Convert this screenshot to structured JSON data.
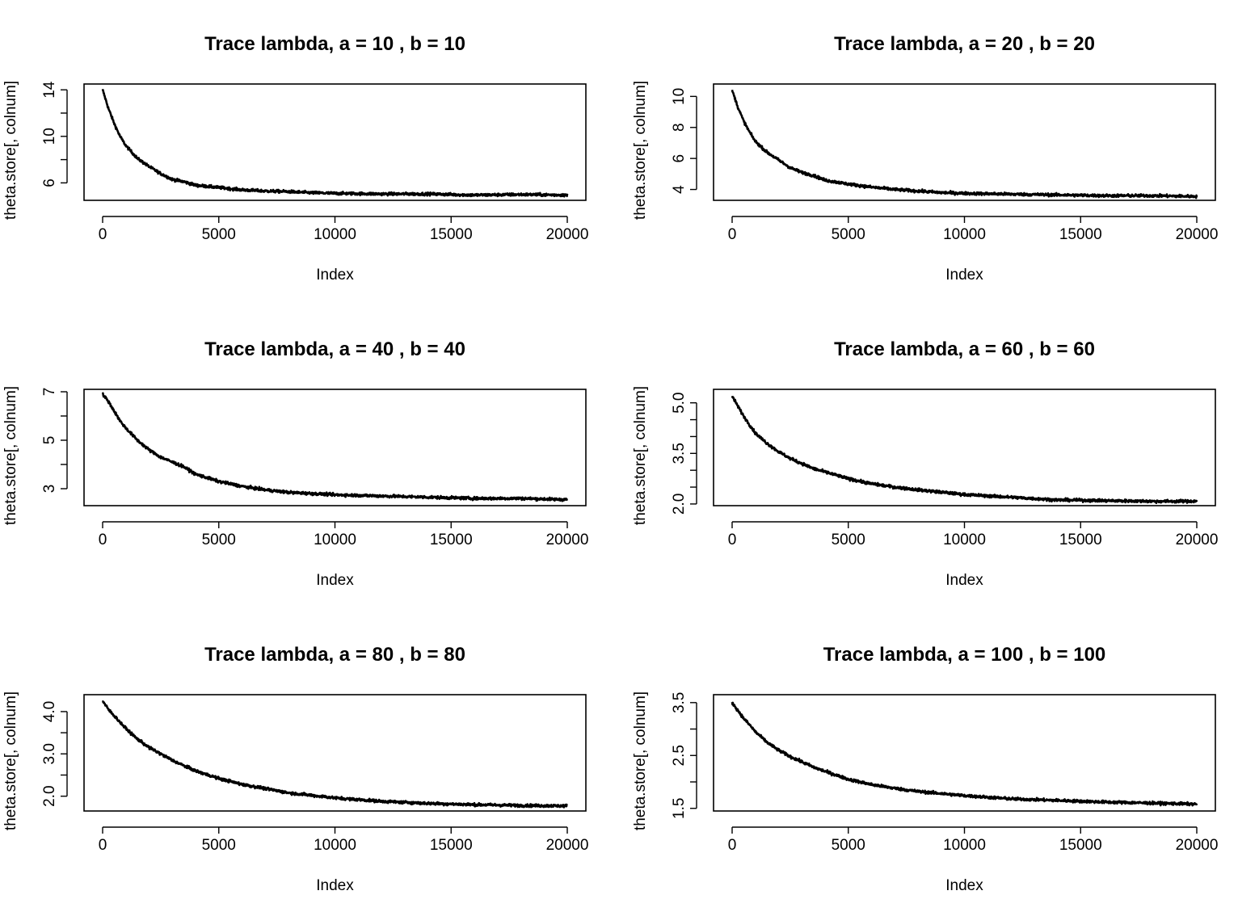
{
  "chart_data": [
    {
      "type": "line",
      "title": "Trace lambda, a = 10 , b = 10",
      "xlabel": "Index",
      "ylabel": "theta.store[, colnum]",
      "xlim": [
        0,
        20000
      ],
      "ylim": [
        4.5,
        14.5
      ],
      "xticks": [
        0,
        5000,
        10000,
        15000,
        20000
      ],
      "xtick_labels": [
        "0",
        "5000",
        "10000",
        "15000",
        "20000"
      ],
      "yticks": [
        6,
        8,
        10,
        12,
        14
      ],
      "ytick_labels": [
        "6",
        "",
        "10",
        "",
        "14"
      ],
      "series": [
        {
          "x": [
            0,
            250,
            500,
            750,
            1000,
            1500,
            2000,
            2500,
            3000,
            3500,
            4000,
            5000,
            6000,
            7000,
            8000,
            9000,
            10000,
            12000,
            14000,
            16000,
            18000,
            20000
          ],
          "values": [
            14.0,
            12.4,
            11.1,
            10.0,
            9.2,
            8.1,
            7.4,
            6.8,
            6.3,
            6.1,
            5.8,
            5.6,
            5.4,
            5.3,
            5.25,
            5.15,
            5.1,
            5.05,
            5.05,
            4.95,
            5.0,
            4.95
          ]
        }
      ]
    },
    {
      "type": "line",
      "title": "Trace lambda, a = 20 , b = 20",
      "xlabel": "Index",
      "ylabel": "theta.store[, colnum]",
      "xlim": [
        0,
        20000
      ],
      "ylim": [
        3.3,
        10.8
      ],
      "xticks": [
        0,
        5000,
        10000,
        15000,
        20000
      ],
      "xtick_labels": [
        "0",
        "5000",
        "10000",
        "15000",
        "20000"
      ],
      "yticks": [
        4,
        6,
        8,
        10
      ],
      "ytick_labels": [
        "4",
        "6",
        "8",
        "10"
      ],
      "series": [
        {
          "x": [
            0,
            250,
            500,
            750,
            1000,
            1500,
            2000,
            2500,
            3000,
            3500,
            4000,
            5000,
            6000,
            7000,
            8000,
            9000,
            10000,
            12000,
            14000,
            16000,
            18000,
            20000
          ],
          "values": [
            10.4,
            9.3,
            8.4,
            7.7,
            7.1,
            6.4,
            5.9,
            5.4,
            5.1,
            4.9,
            4.6,
            4.35,
            4.15,
            4.0,
            3.9,
            3.8,
            3.75,
            3.7,
            3.65,
            3.6,
            3.6,
            3.55
          ]
        }
      ]
    },
    {
      "type": "line",
      "title": "Trace lambda, a = 40 , b = 40",
      "xlabel": "Index",
      "ylabel": "theta.store[, colnum]",
      "xlim": [
        0,
        20000
      ],
      "ylim": [
        2.3,
        7.1
      ],
      "xticks": [
        0,
        5000,
        10000,
        15000,
        20000
      ],
      "xtick_labels": [
        "0",
        "5000",
        "10000",
        "15000",
        "20000"
      ],
      "yticks": [
        3,
        4,
        5,
        6,
        7
      ],
      "ytick_labels": [
        "3",
        "",
        "5",
        "",
        "7"
      ],
      "series": [
        {
          "x": [
            0,
            250,
            500,
            750,
            1000,
            1500,
            2000,
            2500,
            3000,
            3500,
            4000,
            5000,
            6000,
            7000,
            8000,
            9000,
            10000,
            12000,
            14000,
            16000,
            18000,
            20000
          ],
          "values": [
            6.9,
            6.6,
            6.2,
            5.8,
            5.5,
            5.0,
            4.6,
            4.3,
            4.1,
            3.9,
            3.6,
            3.3,
            3.1,
            2.95,
            2.85,
            2.8,
            2.75,
            2.7,
            2.65,
            2.6,
            2.6,
            2.55
          ]
        }
      ]
    },
    {
      "type": "line",
      "title": "Trace lambda, a = 60 , b = 60",
      "xlabel": "Index",
      "ylabel": "theta.store[, colnum]",
      "xlim": [
        0,
        20000
      ],
      "ylim": [
        1.95,
        5.4
      ],
      "xticks": [
        0,
        5000,
        10000,
        15000,
        20000
      ],
      "xtick_labels": [
        "0",
        "5000",
        "10000",
        "15000",
        "20000"
      ],
      "yticks": [
        2.0,
        2.5,
        3.0,
        3.5,
        4.0,
        4.5,
        5.0
      ],
      "ytick_labels": [
        "2.0",
        "",
        "",
        "3.5",
        "",
        "",
        "5.0"
      ],
      "series": [
        {
          "x": [
            0,
            250,
            500,
            750,
            1000,
            1500,
            2000,
            2500,
            3000,
            3500,
            4000,
            5000,
            6000,
            7000,
            8000,
            9000,
            10000,
            12000,
            14000,
            16000,
            18000,
            20000
          ],
          "values": [
            5.2,
            4.9,
            4.6,
            4.35,
            4.1,
            3.8,
            3.55,
            3.35,
            3.2,
            3.05,
            2.95,
            2.75,
            2.6,
            2.5,
            2.42,
            2.35,
            2.28,
            2.2,
            2.12,
            2.1,
            2.08,
            2.08
          ]
        }
      ]
    },
    {
      "type": "line",
      "title": "Trace lambda, a = 80 , b = 80",
      "xlabel": "Index",
      "ylabel": "theta.store[, colnum]",
      "xlim": [
        0,
        20000
      ],
      "ylim": [
        1.65,
        4.4
      ],
      "xticks": [
        0,
        5000,
        10000,
        15000,
        20000
      ],
      "xtick_labels": [
        "0",
        "5000",
        "10000",
        "15000",
        "20000"
      ],
      "yticks": [
        2.0,
        2.5,
        3.0,
        3.5,
        4.0
      ],
      "ytick_labels": [
        "2.0",
        "",
        "3.0",
        "",
        "4.0"
      ],
      "series": [
        {
          "x": [
            0,
            250,
            500,
            750,
            1000,
            1500,
            2000,
            2500,
            3000,
            3500,
            4000,
            5000,
            6000,
            7000,
            8000,
            9000,
            10000,
            12000,
            14000,
            16000,
            18000,
            20000
          ],
          "values": [
            4.25,
            4.05,
            3.9,
            3.75,
            3.6,
            3.35,
            3.15,
            3.0,
            2.85,
            2.72,
            2.6,
            2.42,
            2.28,
            2.18,
            2.08,
            2.02,
            1.96,
            1.88,
            1.83,
            1.8,
            1.78,
            1.77
          ]
        }
      ]
    },
    {
      "type": "line",
      "title": "Trace lambda, a = 100 , b = 100",
      "xlabel": "Index",
      "ylabel": "theta.store[, colnum]",
      "xlim": [
        0,
        20000
      ],
      "ylim": [
        1.45,
        3.65
      ],
      "xticks": [
        0,
        5000,
        10000,
        15000,
        20000
      ],
      "xtick_labels": [
        "0",
        "5000",
        "10000",
        "15000",
        "20000"
      ],
      "yticks": [
        1.5,
        2.0,
        2.5,
        3.0,
        3.5
      ],
      "ytick_labels": [
        "1.5",
        "",
        "2.5",
        "",
        "3.5"
      ],
      "series": [
        {
          "x": [
            0,
            250,
            500,
            750,
            1000,
            1500,
            2000,
            2500,
            3000,
            3500,
            4000,
            5000,
            6000,
            7000,
            8000,
            9000,
            10000,
            12000,
            14000,
            16000,
            18000,
            20000
          ],
          "values": [
            3.5,
            3.35,
            3.2,
            3.08,
            2.95,
            2.75,
            2.6,
            2.48,
            2.38,
            2.28,
            2.2,
            2.05,
            1.95,
            1.88,
            1.82,
            1.78,
            1.74,
            1.68,
            1.65,
            1.62,
            1.6,
            1.58
          ]
        }
      ]
    }
  ]
}
